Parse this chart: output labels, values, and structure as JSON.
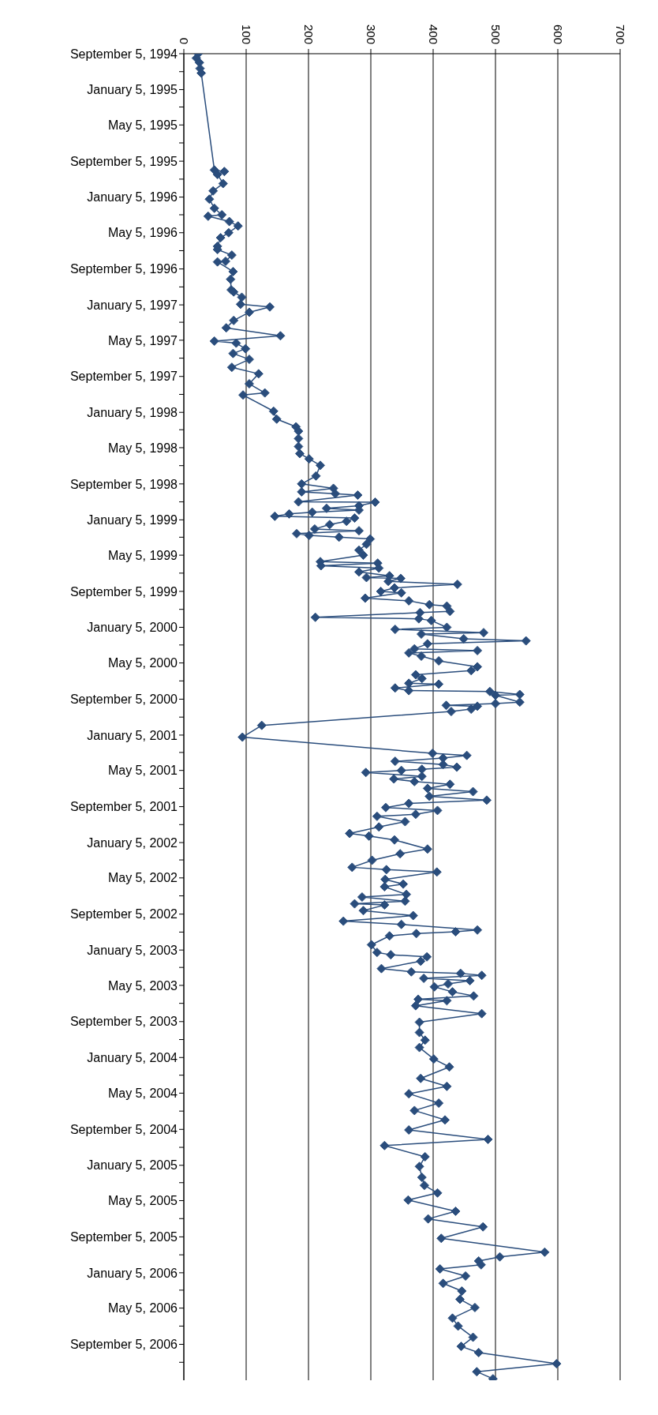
{
  "chart_data": {
    "type": "line",
    "orientation": "horizontal",
    "color": "#2a4d7c",
    "marker": "diamond",
    "grid": "x",
    "xlim": [
      0,
      700
    ],
    "xticks": [
      0,
      100,
      200,
      300,
      400,
      500,
      600,
      700
    ],
    "ylim": [
      "2007-01-05",
      "1994-09-05"
    ],
    "yticks": [
      {
        "value": "1994-09-05",
        "label": "September 5, 1994"
      },
      {
        "value": "1994-11-05",
        "label": null
      },
      {
        "value": "1995-01-05",
        "label": "January 5, 1995"
      },
      {
        "value": "1995-03-05",
        "label": null
      },
      {
        "value": "1995-05-05",
        "label": "May 5, 1995"
      },
      {
        "value": "1995-07-05",
        "label": null
      },
      {
        "value": "1995-09-05",
        "label": "September 5, 1995"
      },
      {
        "value": "1995-11-05",
        "label": null
      },
      {
        "value": "1996-01-05",
        "label": "January 5, 1996"
      },
      {
        "value": "1996-03-05",
        "label": null
      },
      {
        "value": "1996-05-05",
        "label": "May 5, 1996"
      },
      {
        "value": "1996-07-05",
        "label": null
      },
      {
        "value": "1996-09-05",
        "label": "September 5, 1996"
      },
      {
        "value": "1996-11-05",
        "label": null
      },
      {
        "value": "1997-01-05",
        "label": "January 5, 1997"
      },
      {
        "value": "1997-03-05",
        "label": null
      },
      {
        "value": "1997-05-05",
        "label": "May 5, 1997"
      },
      {
        "value": "1997-07-05",
        "label": null
      },
      {
        "value": "1997-09-05",
        "label": "September 5, 1997"
      },
      {
        "value": "1997-11-05",
        "label": null
      },
      {
        "value": "1998-01-05",
        "label": "January 5, 1998"
      },
      {
        "value": "1998-03-05",
        "label": null
      },
      {
        "value": "1998-05-05",
        "label": "May 5, 1998"
      },
      {
        "value": "1998-07-05",
        "label": null
      },
      {
        "value": "1998-09-05",
        "label": "September 5, 1998"
      },
      {
        "value": "1998-11-05",
        "label": null
      },
      {
        "value": "1999-01-05",
        "label": "January 5, 1999"
      },
      {
        "value": "1999-03-05",
        "label": null
      },
      {
        "value": "1999-05-05",
        "label": "May 5, 1999"
      },
      {
        "value": "1999-07-05",
        "label": null
      },
      {
        "value": "1999-09-05",
        "label": "September 5, 1999"
      },
      {
        "value": "1999-11-05",
        "label": null
      },
      {
        "value": "2000-01-05",
        "label": "January 5, 2000"
      },
      {
        "value": "2000-03-05",
        "label": null
      },
      {
        "value": "2000-05-05",
        "label": "May 5, 2000"
      },
      {
        "value": "2000-07-05",
        "label": null
      },
      {
        "value": "2000-09-05",
        "label": "September 5, 2000"
      },
      {
        "value": "2000-11-05",
        "label": null
      },
      {
        "value": "2001-01-05",
        "label": "January 5, 2001"
      },
      {
        "value": "2001-03-05",
        "label": null
      },
      {
        "value": "2001-05-05",
        "label": "May 5, 2001"
      },
      {
        "value": "2001-07-05",
        "label": null
      },
      {
        "value": "2001-09-05",
        "label": "September 5, 2001"
      },
      {
        "value": "2001-11-05",
        "label": null
      },
      {
        "value": "2002-01-05",
        "label": "January 5, 2002"
      },
      {
        "value": "2002-03-05",
        "label": null
      },
      {
        "value": "2002-05-05",
        "label": "May 5, 2002"
      },
      {
        "value": "2002-07-05",
        "label": null
      },
      {
        "value": "2002-09-05",
        "label": "September 5, 2002"
      },
      {
        "value": "2002-11-05",
        "label": null
      },
      {
        "value": "2003-01-05",
        "label": "January 5, 2003"
      },
      {
        "value": "2003-03-05",
        "label": null
      },
      {
        "value": "2003-05-05",
        "label": "May 5, 2003"
      },
      {
        "value": "2003-07-05",
        "label": null
      },
      {
        "value": "2003-09-05",
        "label": "September 5, 2003"
      },
      {
        "value": "2003-11-05",
        "label": null
      },
      {
        "value": "2004-01-05",
        "label": "January 5, 2004"
      },
      {
        "value": "2004-03-05",
        "label": null
      },
      {
        "value": "2004-05-05",
        "label": "May 5, 2004"
      },
      {
        "value": "2004-07-05",
        "label": null
      },
      {
        "value": "2004-09-05",
        "label": "September 5, 2004"
      },
      {
        "value": "2004-11-05",
        "label": null
      },
      {
        "value": "2005-01-05",
        "label": "January 5, 2005"
      },
      {
        "value": "2005-03-05",
        "label": null
      },
      {
        "value": "2005-05-05",
        "label": "May 5, 2005"
      },
      {
        "value": "2005-07-05",
        "label": null
      },
      {
        "value": "2005-09-05",
        "label": "September 5, 2005"
      },
      {
        "value": "2005-11-05",
        "label": null
      },
      {
        "value": "2006-01-05",
        "label": "January 5, 2006"
      },
      {
        "value": "2006-03-05",
        "label": null
      },
      {
        "value": "2006-05-05",
        "label": "May 5, 2006"
      },
      {
        "value": "2006-07-05",
        "label": null
      },
      {
        "value": "2006-09-05",
        "label": "September 5, 2006"
      },
      {
        "value": "2006-11-05",
        "label": null
      }
    ],
    "x": [
      "1994-09-05",
      "1994-09-20",
      "1994-10-05",
      "1994-10-25",
      "1994-11-10",
      "1995-10-05",
      "1995-10-10",
      "1995-10-20",
      "1995-11-20",
      "1995-12-15",
      "1996-01-12",
      "1996-02-12",
      "1996-03-05",
      "1996-03-10",
      "1996-03-28",
      "1996-04-12",
      "1996-05-05",
      "1996-05-22",
      "1996-06-20",
      "1996-07-01",
      "1996-07-20",
      "1996-08-10",
      "1996-08-12",
      "1996-09-14",
      "1996-10-10",
      "1996-11-15",
      "1996-11-22",
      "1996-12-10",
      "1997-01-03",
      "1997-01-12",
      "1997-01-30",
      "1997-02-27",
      "1997-03-24",
      "1997-04-20",
      "1997-05-08",
      "1997-05-15",
      "1997-06-03",
      "1997-06-19",
      "1997-07-09",
      "1997-08-05",
      "1997-08-27",
      "1997-09-30",
      "1997-10-31",
      "1997-11-07",
      "1998-01-01",
      "1998-01-28",
      "1998-02-23",
      "1998-03-10",
      "1998-04-04",
      "1998-05-01",
      "1998-05-25",
      "1998-06-12",
      "1998-07-04",
      "1998-08-09",
      "1998-09-05",
      "1998-09-20",
      "1998-10-02",
      "1998-10-08",
      "1998-10-13",
      "1998-11-05",
      "1998-11-06",
      "1998-11-18",
      "1998-11-27",
      "1998-12-03",
      "1998-12-10",
      "1998-12-16",
      "1998-12-24",
      "1998-12-30",
      "1999-01-10",
      "1999-01-21",
      "1999-02-05",
      "1999-02-11",
      "1999-02-21",
      "1999-02-27",
      "1999-03-05",
      "1999-03-11",
      "1999-03-29",
      "1999-04-18",
      "1999-05-05",
      "1999-05-27",
      "1999-06-01",
      "1999-06-10",
      "1999-06-18",
      "1999-07-01",
      "1999-07-14",
      "1999-07-20",
      "1999-07-23",
      "1999-08-02",
      "1999-08-12",
      "1999-08-24",
      "1999-09-05",
      "1999-09-10",
      "1999-09-28",
      "1999-10-07",
      "1999-10-20",
      "1999-10-25",
      "1999-11-12",
      "1999-11-16",
      "1999-12-02",
      "1999-12-07",
      "1999-12-13",
      "2000-01-05",
      "2000-01-12",
      "2000-01-23",
      "2000-01-28",
      "2000-02-13",
      "2000-02-20",
      "2000-03-01",
      "2000-03-18",
      "2000-03-24",
      "2000-04-01",
      "2000-04-12",
      "2000-04-28",
      "2000-05-18",
      "2000-05-31",
      "2000-06-14",
      "2000-06-27",
      "2000-07-13",
      "2000-07-16",
      "2000-07-29",
      "2000-08-07",
      "2000-08-10",
      "2000-08-20",
      "2000-08-23",
      "2000-09-15",
      "2000-09-20",
      "2000-09-26",
      "2000-09-29",
      "2000-10-09",
      "2000-10-17",
      "2000-12-03",
      "2001-01-12",
      "2001-03-08",
      "2001-03-15",
      "2001-03-24",
      "2001-04-04",
      "2001-04-15",
      "2001-04-24",
      "2001-05-01",
      "2001-05-05",
      "2001-05-12",
      "2001-05-25",
      "2001-06-03",
      "2001-06-12",
      "2001-06-21",
      "2001-07-05",
      "2001-07-16",
      "2001-08-01",
      "2001-08-14",
      "2001-08-25",
      "2001-09-08",
      "2001-09-18",
      "2001-10-01",
      "2001-10-08",
      "2001-10-26",
      "2001-11-13",
      "2001-12-05",
      "2001-12-14",
      "2001-12-27",
      "2002-01-27",
      "2002-02-12",
      "2002-03-06",
      "2002-03-30",
      "2002-04-07",
      "2002-04-15",
      "2002-05-10",
      "2002-05-26",
      "2002-06-04",
      "2002-06-30",
      "2002-07-09",
      "2002-07-23",
      "2002-08-01",
      "2002-08-05",
      "2002-08-24",
      "2002-09-10",
      "2002-09-29",
      "2002-10-10",
      "2002-10-29",
      "2002-11-04",
      "2002-11-10",
      "2002-11-18",
      "2002-12-18",
      "2003-01-13",
      "2003-01-21",
      "2003-01-28",
      "2003-02-12",
      "2003-03-09",
      "2003-03-20",
      "2003-03-25",
      "2003-04-01",
      "2003-04-11",
      "2003-04-19",
      "2003-04-30",
      "2003-05-10",
      "2003-05-27",
      "2003-06-10",
      "2003-06-21",
      "2003-06-26",
      "2003-07-13",
      "2003-08-09",
      "2003-09-07",
      "2003-10-12",
      "2003-11-07",
      "2003-12-02",
      "2004-01-10",
      "2004-02-06",
      "2004-03-16",
      "2004-04-12",
      "2004-05-07",
      "2004-06-08",
      "2004-07-03",
      "2004-08-04",
      "2004-09-07",
      "2004-10-09",
      "2004-10-30",
      "2004-12-07",
      "2005-01-09",
      "2005-02-15",
      "2005-03-14",
      "2005-04-09",
      "2005-05-03",
      "2005-06-10",
      "2005-07-06",
      "2005-08-02",
      "2005-09-10",
      "2005-10-27",
      "2005-11-12",
      "2005-11-26",
      "2005-12-09",
      "2005-12-23",
      "2006-01-16",
      "2006-02-10",
      "2006-03-08",
      "2006-04-05",
      "2006-05-03",
      "2006-06-08",
      "2006-07-05",
      "2006-08-12",
      "2006-09-12",
      "2006-10-03",
      "2006-11-10",
      "2006-12-07",
      "2006-12-31"
    ],
    "values": [
      23,
      20,
      25,
      26,
      28,
      49,
      65,
      54,
      63,
      47,
      41,
      49,
      61,
      39,
      73,
      87,
      72,
      59,
      54,
      54,
      77,
      67,
      54,
      79,
      75,
      76,
      80,
      93,
      91,
      138,
      105,
      80,
      68,
      155,
      49,
      84,
      99,
      79,
      105,
      77,
      120,
      105,
      130,
      95,
      144,
      149,
      180,
      184,
      184,
      184,
      186,
      201,
      219,
      212,
      189,
      240,
      189,
      243,
      279,
      184,
      307,
      281,
      229,
      281,
      206,
      169,
      146,
      274,
      261,
      234,
      210,
      281,
      181,
      201,
      249,
      299,
      293,
      281,
      288,
      219,
      311,
      220,
      313,
      281,
      330,
      293,
      348,
      328,
      439,
      338,
      316,
      349,
      291,
      361,
      394,
      422,
      427,
      379,
      211,
      377,
      397,
      422,
      339,
      481,
      381,
      449,
      549,
      391,
      370,
      471,
      361,
      381,
      409,
      471,
      461,
      372,
      382,
      361,
      409,
      339,
      361,
      491,
      539,
      500,
      539,
      500,
      421,
      471,
      461,
      429,
      125,
      94,
      399,
      454,
      416,
      339,
      416,
      438,
      382,
      349,
      292,
      382,
      337,
      370,
      427,
      391,
      464,
      394,
      486,
      361,
      324,
      407,
      372,
      310,
      355,
      313,
      266,
      297,
      338,
      391,
      347,
      302,
      270,
      325,
      406,
      323,
      352,
      322,
      357,
      286,
      355,
      274,
      322,
      288,
      368,
      256,
      349,
      471,
      436,
      373,
      330,
      301,
      310,
      332,
      390,
      380,
      317,
      365,
      444,
      478,
      385,
      459,
      424,
      402,
      431,
      465,
      376,
      422,
      372,
      478,
      378,
      378,
      387,
      378,
      401,
      426,
      380,
      422,
      361,
      409,
      370,
      419,
      361,
      488,
      322,
      387,
      378,
      382,
      386,
      407,
      360,
      436,
      392,
      480,
      413,
      579,
      507,
      473,
      477,
      411,
      452,
      416,
      446,
      443,
      467,
      431,
      440,
      464,
      445,
      473,
      598,
      470,
      496
    ]
  }
}
